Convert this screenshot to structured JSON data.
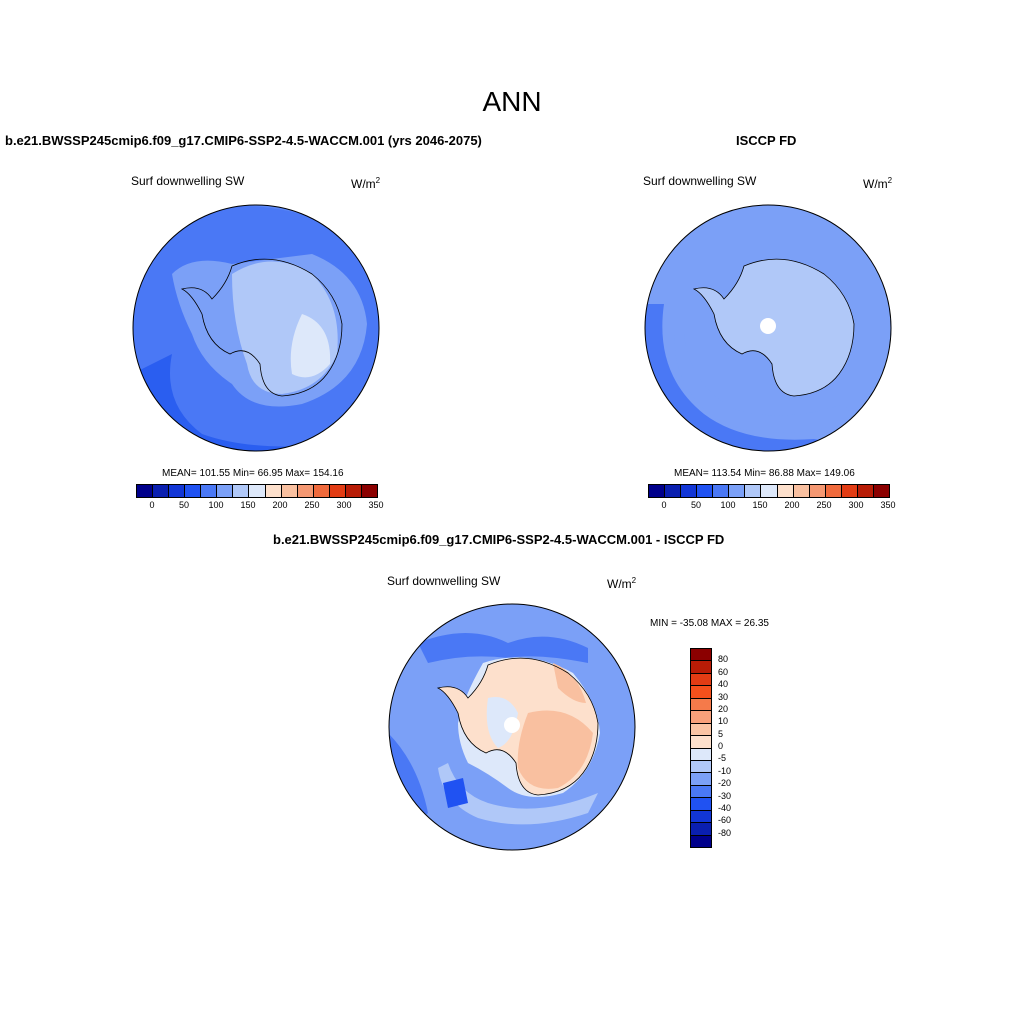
{
  "title": "ANN",
  "panels": {
    "model": {
      "title": "b.e21.BWSSP245cmip6.f09_g17.CMIP6-SSP2-4.5-WACCM.001 (yrs 2046-2075)",
      "variable": "Surf downwelling SW",
      "units": "W/m",
      "units_exp": "2",
      "stats": "MEAN= 101.55  Min=  66.95  Max= 154.16"
    },
    "obs": {
      "title": "ISCCP FD",
      "variable": "Surf downwelling SW",
      "units": "W/m",
      "units_exp": "2",
      "stats": "MEAN= 113.54  Min=  86.88  Max= 149.06"
    },
    "diff": {
      "title": "b.e21.BWSSP245cmip6.f09_g17.CMIP6-SSP2-4.5-WACCM.001 - ISCCP FD",
      "variable": "Surf downwelling SW",
      "units": "W/m",
      "units_exp": "2",
      "stats": "MIN = -35.08 MAX =  26.35"
    }
  },
  "colorbar_main": {
    "colors": [
      "#00008b",
      "#0a1fb0",
      "#1236d6",
      "#2052f2",
      "#4a78f5",
      "#7ba0f7",
      "#b0c8f8",
      "#dde8fa",
      "#fde0cc",
      "#f9c0a0",
      "#f59872",
      "#f06a3c",
      "#e23c14",
      "#b81c06",
      "#8b0000"
    ],
    "ticks": [
      "0",
      "50",
      "100",
      "150",
      "200",
      "250",
      "300",
      "350"
    ]
  },
  "colorbar_diff": {
    "colors": [
      "#8b0000",
      "#b81c06",
      "#e23c14",
      "#f5501c",
      "#f57a4a",
      "#f8a07a",
      "#fac4a4",
      "#fde0cc",
      "#dde8fa",
      "#b0c8f8",
      "#7ba0f7",
      "#4a78f5",
      "#2052f2",
      "#1236d6",
      "#0a1fb0",
      "#00008b"
    ],
    "ticks": [
      "80",
      "60",
      "40",
      "30",
      "20",
      "10",
      "5",
      "0",
      "-5",
      "-10",
      "-20",
      "-30",
      "-40",
      "-60",
      "-80"
    ]
  }
}
